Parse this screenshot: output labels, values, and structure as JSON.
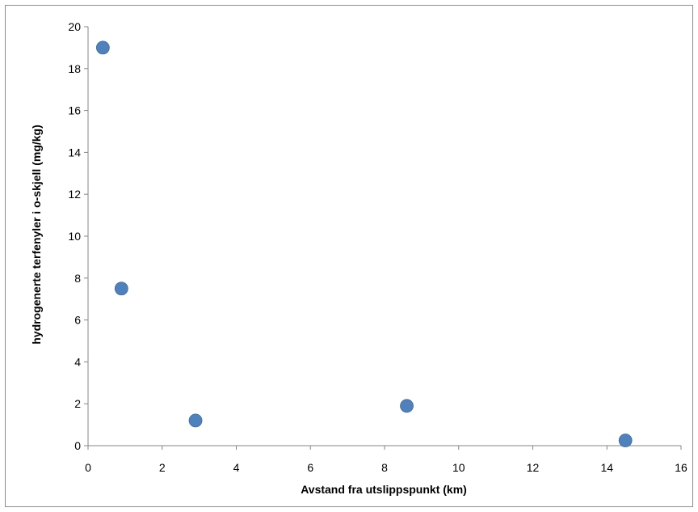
{
  "chart_data": {
    "type": "scatter",
    "title": "",
    "xlabel": "Avstand fra utslippspunkt (km)",
    "ylabel": "hydrogenerte terfenyler i o-skjell (mg/kg)",
    "xlim": [
      0,
      16
    ],
    "ylim": [
      0,
      20
    ],
    "xticks": [
      "0",
      "2",
      "4",
      "6",
      "8",
      "10",
      "12",
      "14",
      "16"
    ],
    "yticks": [
      "0",
      "2",
      "4",
      "6",
      "8",
      "10",
      "12",
      "14",
      "16",
      "18",
      "20"
    ],
    "grid": false,
    "legend": "none",
    "marker_color": "#4f81bd",
    "points": [
      {
        "x": 0.4,
        "y": 19.0
      },
      {
        "x": 0.9,
        "y": 7.5
      },
      {
        "x": 2.9,
        "y": 1.2
      },
      {
        "x": 8.6,
        "y": 1.9
      },
      {
        "x": 14.5,
        "y": 0.25
      }
    ]
  }
}
